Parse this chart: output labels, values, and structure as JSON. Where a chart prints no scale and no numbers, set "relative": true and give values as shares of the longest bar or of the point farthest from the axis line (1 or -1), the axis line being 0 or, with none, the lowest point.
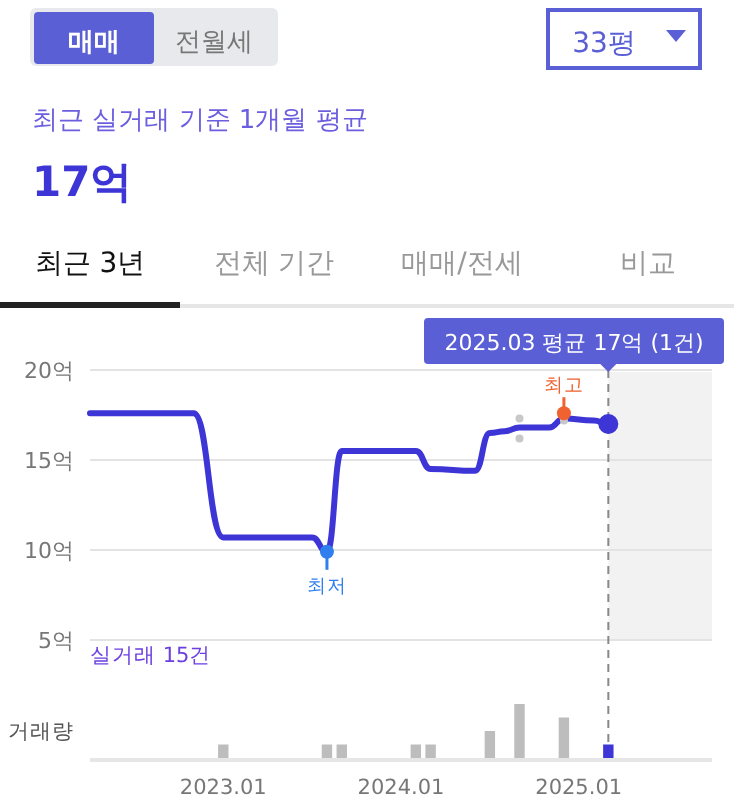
{
  "chart_data": [
    {
      "type": "other",
      "title": "최근 실거래 기준 1개월 평균",
      "subtitle": "17억",
      "annotations": [
        "매매",
        "전월세",
        "33평",
        "최근 3년",
        "전체 기간",
        "매매/전세",
        "비교"
      ]
    },
    {
      "type": "line",
      "xlim": [
        "2022-04",
        "2025-10"
      ],
      "ylim": [
        5,
        20
      ],
      "yticks": [
        {
          "value": 5,
          "label": "5억"
        },
        {
          "value": 10,
          "label": "10억"
        },
        {
          "value": 15,
          "label": "15억"
        },
        {
          "value": 20,
          "label": "20억"
        }
      ],
      "grid": "y",
      "tick_labels": "y",
      "line_style": "solid",
      "series": [
        {
          "type": "line",
          "color": "#3d35d6",
          "x": [
            "2022-04",
            "2022-11",
            "2023-01",
            "2023-07",
            "2023-08",
            "2023-09",
            "2024-02",
            "2024-03",
            "2024-06",
            "2024-07",
            "2024-08",
            "2024-09",
            "2024-11",
            "2024-12",
            "2025-02",
            "2025-03"
          ],
          "values": [
            17.6,
            17.6,
            10.7,
            10.7,
            9.9,
            15.5,
            15.5,
            14.5,
            14.4,
            16.5,
            16.6,
            16.8,
            16.8,
            17.3,
            17.2,
            17.0
          ]
        },
        {
          "type": "scatter",
          "color": "#c8c8c8",
          "x": [
            "2024-09",
            "2024-09",
            "2024-12"
          ],
          "values": [
            17.3,
            16.2,
            17.2
          ]
        }
      ],
      "ref_lines": [
        {
          "axis": "x",
          "value": "2025-03",
          "color": "#888888",
          "line_style": "dashed"
        }
      ],
      "bands": [
        {
          "axis": "x",
          "from": "2025-03",
          "to": "2025-10",
          "color": "#f2f2f2"
        }
      ],
      "annotations": [
        {
          "text": "최고",
          "x": "2024-12",
          "y": 17.6
        },
        {
          "text": "최저",
          "x": "2023-08",
          "y": 9.9
        },
        "2025.03 평균 17억 (1건)",
        "실거래 15건"
      ]
    },
    {
      "type": "bar",
      "relative": true,
      "ylabel": "거래량",
      "tick_labels": "x",
      "xlim": [
        "2022-04",
        "2025-10"
      ],
      "xticks": [
        {
          "value": "2023-01",
          "label": "2023.01"
        },
        {
          "value": "2024-01",
          "label": "2024.01"
        },
        {
          "value": "2025-01",
          "label": "2025.01"
        }
      ],
      "x": [
        "2023-01",
        "2023-08",
        "2023-09",
        "2024-02",
        "2024-03",
        "2024-07",
        "2024-09",
        "2024-12",
        "2025-03"
      ],
      "values": [
        0.25,
        0.25,
        0.25,
        0.25,
        0.25,
        0.5,
        1,
        0.75,
        0.25
      ],
      "colors": [
        "#bdbdbd",
        "#bdbdbd",
        "#bdbdbd",
        "#bdbdbd",
        "#bdbdbd",
        "#bdbdbd",
        "#bdbdbd",
        "#bdbdbd",
        "#3d35d6"
      ]
    }
  ]
}
